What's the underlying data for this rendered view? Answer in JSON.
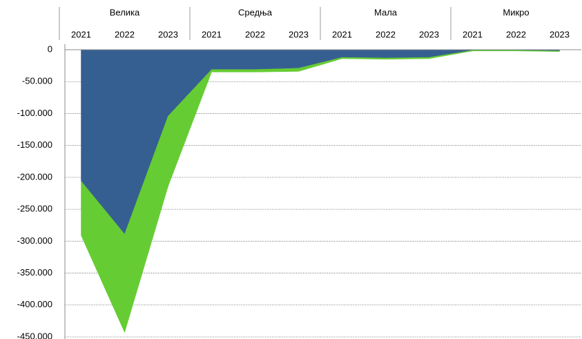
{
  "chart_data": {
    "type": "stacked-area",
    "groups": [
      "Велика",
      "Средња",
      "Мала",
      "Микро"
    ],
    "categories": [
      "2021",
      "2022",
      "2023",
      "2021",
      "2022",
      "2023",
      "2021",
      "2022",
      "2023",
      "2021",
      "2022",
      "2023"
    ],
    "series": [
      {
        "color": "#365f91",
        "values": [
          -206000,
          -289000,
          -104000,
          -31000,
          -31000,
          -29000,
          -12000,
          -13000,
          -12000,
          -1000,
          -1000,
          -2000
        ]
      },
      {
        "color": "#66cc33",
        "values": [
          -85000,
          -154000,
          -110000,
          -4000,
          -4000,
          -5000,
          -2000,
          -2000,
          -2000,
          -1000,
          -1000,
          -1000
        ]
      }
    ],
    "ylim": [
      -450000,
      0
    ],
    "yticks": [
      {
        "value": 0,
        "label": "0"
      },
      {
        "value": -50000,
        "label": "-50.000"
      },
      {
        "value": -100000,
        "label": "-100.000"
      },
      {
        "value": -150000,
        "label": "-150.000"
      },
      {
        "value": -200000,
        "label": "-200.000"
      },
      {
        "value": -250000,
        "label": "-250.000"
      },
      {
        "value": -300000,
        "label": "-300.000"
      },
      {
        "value": -350000,
        "label": "-350.000"
      },
      {
        "value": -400000,
        "label": "-400.000"
      },
      {
        "value": -450000,
        "label": "-450.000"
      }
    ],
    "grid": true
  }
}
